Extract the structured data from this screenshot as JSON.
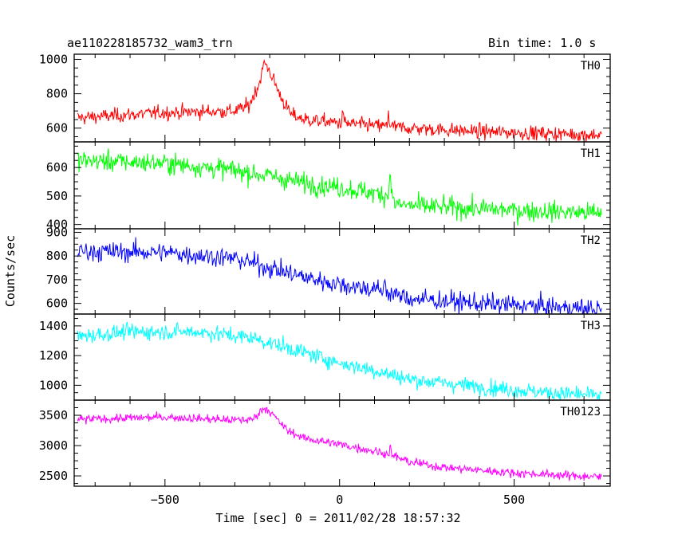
{
  "chart_data": {
    "type": "line",
    "title_left": "ae110228185732_wam3_trn",
    "title_right": "Bin time: 1.0 s",
    "xlabel": "Time [sec] 0 = 2011/02/28 18:57:32",
    "ylabel": "Counts/sec",
    "xlim": [
      -760,
      775
    ],
    "xticks": [
      -500,
      0,
      500
    ],
    "x_start": -750,
    "x_end": 750,
    "x_step": 2,
    "grid": false,
    "panels": [
      {
        "name": "TH0",
        "color": "#ff0000",
        "ylim": [
          520,
          1030
        ],
        "yticks": [
          600,
          800,
          1000
        ],
        "noise": 35,
        "baseline": [
          [
            -750,
            660
          ],
          [
            -500,
            690
          ],
          [
            -300,
            700
          ],
          [
            -260,
            730
          ],
          [
            -230,
            860
          ],
          [
            -215,
            985
          ],
          [
            -200,
            930
          ],
          [
            -170,
            790
          ],
          [
            -140,
            680
          ],
          [
            -100,
            650
          ],
          [
            0,
            630
          ],
          [
            100,
            615
          ],
          [
            200,
            600
          ],
          [
            400,
            580
          ],
          [
            750,
            560
          ]
        ],
        "spikes": [
          [
            10,
            80
          ],
          [
            140,
            100
          ]
        ]
      },
      {
        "name": "TH1",
        "color": "#00ff00",
        "ylim": [
          385,
          690
        ],
        "yticks": [
          400,
          500,
          600
        ],
        "noise": 30,
        "baseline": [
          [
            -750,
            625
          ],
          [
            -500,
            615
          ],
          [
            -300,
            590
          ],
          [
            -200,
            570
          ],
          [
            -100,
            545
          ],
          [
            0,
            530
          ],
          [
            100,
            510
          ],
          [
            150,
            500
          ],
          [
            160,
            470
          ],
          [
            300,
            460
          ],
          [
            500,
            450
          ],
          [
            750,
            440
          ]
        ],
        "spikes": [
          [
            145,
            120
          ]
        ]
      },
      {
        "name": "TH2",
        "color": "#0000ff",
        "ylim": [
          555,
          915
        ],
        "yticks": [
          600,
          700,
          800,
          900
        ],
        "noise": 35,
        "baseline": [
          [
            -750,
            820
          ],
          [
            -500,
            815
          ],
          [
            -300,
            790
          ],
          [
            -200,
            750
          ],
          [
            -100,
            710
          ],
          [
            0,
            680
          ],
          [
            100,
            660
          ],
          [
            200,
            620
          ],
          [
            400,
            600
          ],
          [
            600,
            585
          ],
          [
            750,
            575
          ]
        ],
        "spikes": [
          [
            130,
            80
          ]
        ]
      },
      {
        "name": "TH3",
        "color": "#00ffff",
        "ylim": [
          900,
          1480
        ],
        "yticks": [
          1000,
          1200,
          1400
        ],
        "noise": 45,
        "baseline": [
          [
            -750,
            1330
          ],
          [
            -600,
            1360
          ],
          [
            -400,
            1360
          ],
          [
            -250,
            1320
          ],
          [
            -100,
            1220
          ],
          [
            0,
            1150
          ],
          [
            100,
            1100
          ],
          [
            200,
            1040
          ],
          [
            400,
            990
          ],
          [
            600,
            950
          ],
          [
            750,
            930
          ]
        ],
        "spikes": []
      },
      {
        "name": "TH0123",
        "color": "#ff00ff",
        "ylim": [
          2330,
          3750
        ],
        "yticks": [
          2500,
          3000,
          3500
        ],
        "noise": 60,
        "baseline": [
          [
            -750,
            3430
          ],
          [
            -500,
            3470
          ],
          [
            -300,
            3420
          ],
          [
            -250,
            3430
          ],
          [
            -220,
            3600
          ],
          [
            -210,
            3620
          ],
          [
            -190,
            3500
          ],
          [
            -150,
            3250
          ],
          [
            -100,
            3120
          ],
          [
            0,
            3020
          ],
          [
            100,
            2910
          ],
          [
            140,
            2860
          ],
          [
            200,
            2730
          ],
          [
            300,
            2640
          ],
          [
            500,
            2550
          ],
          [
            750,
            2480
          ]
        ],
        "spikes": [
          [
            145,
            150
          ]
        ]
      }
    ]
  }
}
